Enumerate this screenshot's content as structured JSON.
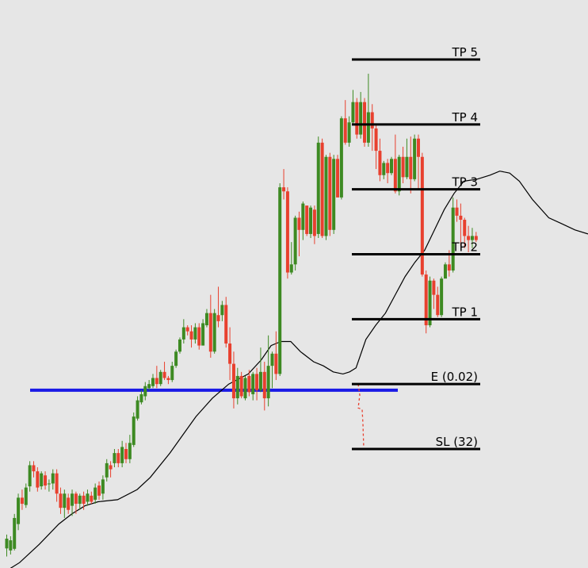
{
  "chart_data": {
    "type": "candlestick",
    "colors": {
      "background": "#e6e6e6",
      "bull": "#3d8a22",
      "bear": "#e8402e",
      "moving_average": "#000000",
      "level_line": "#000000",
      "support_line": "#1a1ae6",
      "stop_path": "#e8402e"
    },
    "price_range": [
      -40,
      102
    ],
    "levels": [
      {
        "label": "TP 5",
        "price": 100
      },
      {
        "label": "TP 4",
        "price": 84
      },
      {
        "label": "TP 3",
        "price": 68
      },
      {
        "label": "TP 2",
        "price": 52
      },
      {
        "label": "TP 1",
        "price": 36
      },
      {
        "label": "E (0.02)",
        "price": 20
      },
      {
        "label": "SL (32)",
        "price": 4
      }
    ],
    "support_price": 18.5,
    "candles": [
      [
        -20.5,
        -18.1,
        -22.5,
        -17.1
      ],
      [
        -21.0,
        -18.5,
        -22.0,
        -17.5
      ],
      [
        -20.6,
        -13.0,
        -21.0,
        -12.0
      ],
      [
        -14.5,
        -8.0,
        -16.0,
        -7.0
      ],
      [
        -8.0,
        -9.5,
        -11.0,
        -6.0
      ],
      [
        -9.8,
        -5.5,
        -10.5,
        -4.5
      ],
      [
        -5.2,
        0.0,
        -6.5,
        1.0
      ],
      [
        0.0,
        -1.5,
        -3.0,
        1.0
      ],
      [
        -1.5,
        -5.5,
        -6.5,
        -0.5
      ],
      [
        -5.2,
        -2.0,
        -6.0,
        -1.5
      ],
      [
        -2.5,
        -5.0,
        -6.0,
        -1.5
      ],
      [
        -4.5,
        -4.5,
        -6.5,
        -3.5
      ],
      [
        -4.5,
        -2.0,
        -6.0,
        -1.0
      ],
      [
        -2.0,
        -7.0,
        -9.0,
        -1.0
      ],
      [
        -7.0,
        -10.5,
        -12.0,
        -5.5
      ],
      [
        -10.5,
        -7.0,
        -13.0,
        -6.0
      ],
      [
        -8.0,
        -11.0,
        -12.0,
        -7.0
      ],
      [
        -10.0,
        -7.0,
        -12.5,
        -6.0
      ],
      [
        -7.0,
        -9.5,
        -12.0,
        -6.5
      ],
      [
        -9.5,
        -7.5,
        -11.0,
        -7.0
      ],
      [
        -7.5,
        -9.5,
        -11.0,
        -6.5
      ],
      [
        -9.0,
        -7.0,
        -10.0,
        -6.0
      ],
      [
        -7.5,
        -9.0,
        -9.5,
        -6.5
      ],
      [
        -8.5,
        -5.5,
        -9.5,
        -4.5
      ],
      [
        -5.0,
        -7.5,
        -8.5,
        -4.0
      ],
      [
        -7.0,
        -3.5,
        -8.5,
        -2.5
      ],
      [
        -3.0,
        0.5,
        -4.0,
        1.5
      ],
      [
        0.0,
        -1.0,
        -3.0,
        1.0
      ],
      [
        0.5,
        3.0,
        -0.5,
        4.0
      ],
      [
        3.0,
        0.5,
        -0.5,
        4.0
      ],
      [
        0.5,
        4.5,
        -0.5,
        6.0
      ],
      [
        4.0,
        1.5,
        0.5,
        5.5
      ],
      [
        1.5,
        5.5,
        0.5,
        7.5
      ],
      [
        5.0,
        12.0,
        4.5,
        13.0
      ],
      [
        11.5,
        16.0,
        11.0,
        17.0
      ],
      [
        15.5,
        17.5,
        15.0,
        18.5
      ],
      [
        17.0,
        19.5,
        16.0,
        20.5
      ],
      [
        19.0,
        20.0,
        18.5,
        21.0
      ],
      [
        19.5,
        21.5,
        19.0,
        22.5
      ],
      [
        21.5,
        20.0,
        19.0,
        24.5
      ],
      [
        20.0,
        23.0,
        19.5,
        23.5
      ],
      [
        23.0,
        21.5,
        21.0,
        25.5
      ],
      [
        21.5,
        21.0,
        20.0,
        22.0
      ],
      [
        21.0,
        24.5,
        20.5,
        25.5
      ],
      [
        24.5,
        28.0,
        24.0,
        28.5
      ],
      [
        28.0,
        31.0,
        27.5,
        31.5
      ],
      [
        31.0,
        34.0,
        30.0,
        36.0
      ],
      [
        34.0,
        33.0,
        32.0,
        34.5
      ],
      [
        33.0,
        31.0,
        29.0,
        34.5
      ],
      [
        31.0,
        34.0,
        30.0,
        35.0
      ],
      [
        34.0,
        29.5,
        28.5,
        35.0
      ],
      [
        29.5,
        35.0,
        29.5,
        36.0
      ],
      [
        34.5,
        37.5,
        34.0,
        38.5
      ],
      [
        37.5,
        28.0,
        26.5,
        42.0
      ],
      [
        28.0,
        37.5,
        27.5,
        38.5
      ],
      [
        37.0,
        35.5,
        34.0,
        44.0
      ],
      [
        37.0,
        39.5,
        35.5,
        40.5
      ],
      [
        39.5,
        30.0,
        29.0,
        41.5
      ],
      [
        30.0,
        25.0,
        21.0,
        34.0
      ],
      [
        25.0,
        16.5,
        14.0,
        28.0
      ],
      [
        16.5,
        22.0,
        15.0,
        24.0
      ],
      [
        22.0,
        17.0,
        16.5,
        23.0
      ],
      [
        16.5,
        21.5,
        16.0,
        22.0
      ],
      [
        22.0,
        18.0,
        17.0,
        23.5
      ],
      [
        17.5,
        22.5,
        16.0,
        23.0
      ],
      [
        22.5,
        18.5,
        16.0,
        24.0
      ],
      [
        18.5,
        23.0,
        18.0,
        29.0
      ],
      [
        23.0,
        16.5,
        13.5,
        25.5
      ],
      [
        16.5,
        24.5,
        14.5,
        32.0
      ],
      [
        24.5,
        27.5,
        19.0,
        28.0
      ],
      [
        27.5,
        22.5,
        21.0,
        33.0
      ],
      [
        22.5,
        68.5,
        22.0,
        69.5
      ],
      [
        68.5,
        67.5,
        65.5,
        73.0
      ],
      [
        67.5,
        47.5,
        46.0,
        68.5
      ],
      [
        47.5,
        49.5,
        47.0,
        55.0
      ],
      [
        49.5,
        61.0,
        48.0,
        61.5
      ],
      [
        61.0,
        58.0,
        51.5,
        62.5
      ],
      [
        58.0,
        64.5,
        55.5,
        65.0
      ],
      [
        64.0,
        57.0,
        56.5,
        64.0
      ],
      [
        57.0,
        63.5,
        56.0,
        64.0
      ],
      [
        63.0,
        56.5,
        54.5,
        64.0
      ],
      [
        57.0,
        79.5,
        56.0,
        81.0
      ],
      [
        79.5,
        56.5,
        56.0,
        80.5
      ],
      [
        56.5,
        76.0,
        55.5,
        76.5
      ],
      [
        76.0,
        58.0,
        56.5,
        77.0
      ],
      [
        58.0,
        75.5,
        57.0,
        76.5
      ],
      [
        75.5,
        66.0,
        66.0,
        76.5
      ],
      [
        66.0,
        85.5,
        65.5,
        86.0
      ],
      [
        85.5,
        79.5,
        79.0,
        90.0
      ],
      [
        79.5,
        84.5,
        78.5,
        86.0
      ],
      [
        84.5,
        89.5,
        84.0,
        92.5
      ],
      [
        89.5,
        81.5,
        80.5,
        90.5
      ],
      [
        81.5,
        89.5,
        80.5,
        92.0
      ],
      [
        89.5,
        79.5,
        78.5,
        90.5
      ],
      [
        79.5,
        87.0,
        78.5,
        96.5
      ],
      [
        87.0,
        83.0,
        77.5,
        89.0
      ],
      [
        83.0,
        77.5,
        73.0,
        84.0
      ],
      [
        77.5,
        71.5,
        70.0,
        80.5
      ],
      [
        71.5,
        74.5,
        70.5,
        75.0
      ],
      [
        74.5,
        72.0,
        69.5,
        75.5
      ],
      [
        72.0,
        75.5,
        71.5,
        76.0
      ],
      [
        75.5,
        67.5,
        67.0,
        81.5
      ],
      [
        67.5,
        76.0,
        66.5,
        76.5
      ],
      [
        76.0,
        71.0,
        69.5,
        78.5
      ],
      [
        71.0,
        76.0,
        70.5,
        80.5
      ],
      [
        76.0,
        70.5,
        67.0,
        81.0
      ],
      [
        70.5,
        80.5,
        70.0,
        81.5
      ],
      [
        80.5,
        76.0,
        68.0,
        81.5
      ],
      [
        76.0,
        47.0,
        46.5,
        77.0
      ],
      [
        47.0,
        34.5,
        32.5,
        48.0
      ],
      [
        34.5,
        45.5,
        34.0,
        46.5
      ],
      [
        45.5,
        42.0,
        38.5,
        46.0
      ],
      [
        42.0,
        37.0,
        36.5,
        44.0
      ],
      [
        37.0,
        46.0,
        36.5,
        46.5
      ],
      [
        46.0,
        49.5,
        47.0,
        50.0
      ],
      [
        49.5,
        48.0,
        46.5,
        53.0
      ],
      [
        48.0,
        63.5,
        47.5,
        66.0
      ],
      [
        63.5,
        61.5,
        60.0,
        65.5
      ],
      [
        61.5,
        60.5,
        54.0,
        64.5
      ],
      [
        60.5,
        56.5,
        53.5,
        61.0
      ],
      [
        56.5,
        55.5,
        52.5,
        59.0
      ],
      [
        55.5,
        56.5,
        53.5,
        58.5
      ],
      [
        56.5,
        55.5,
        55.0,
        57.5
      ]
    ],
    "moving_average": [
      [
        0,
        -27.0
      ],
      [
        6,
        -24.0
      ],
      [
        12,
        -19.5
      ],
      [
        18,
        -14.5
      ],
      [
        22,
        -12.0
      ],
      [
        26,
        -10.0
      ],
      [
        30,
        -9.0
      ],
      [
        36,
        -8.5
      ],
      [
        42,
        -6.0
      ],
      [
        46,
        -3.0
      ],
      [
        52,
        3.0
      ],
      [
        56,
        7.5
      ],
      [
        60,
        12.0
      ],
      [
        65,
        16.5
      ],
      [
        70,
        20.0
      ],
      [
        76,
        22.5
      ],
      [
        80,
        26.0
      ],
      [
        83,
        29.5
      ],
      [
        86,
        30.5
      ],
      [
        89,
        30.5
      ],
      [
        92,
        28.0
      ],
      [
        96,
        25.5
      ],
      [
        99,
        24.5
      ],
      [
        102,
        23.0
      ],
      [
        105,
        22.5
      ],
      [
        107,
        23.0
      ],
      [
        109,
        24.0
      ],
      [
        112,
        31.0
      ],
      [
        115,
        34.5
      ],
      [
        118,
        37.5
      ],
      [
        121,
        42.0
      ],
      [
        124,
        46.5
      ],
      [
        127,
        50.0
      ],
      [
        130,
        53.0
      ],
      [
        133,
        58.0
      ],
      [
        136,
        63.0
      ],
      [
        139,
        67.0
      ],
      [
        142,
        70.0
      ],
      [
        146,
        70.5
      ],
      [
        150,
        71.5
      ],
      [
        153,
        72.5
      ],
      [
        156,
        72.0
      ],
      [
        159,
        70.0
      ],
      [
        163,
        65.5
      ],
      [
        168,
        61.0
      ],
      [
        172,
        59.5
      ],
      [
        176,
        58.0
      ],
      [
        180,
        57.0
      ]
    ],
    "ma_offset": 43
  }
}
